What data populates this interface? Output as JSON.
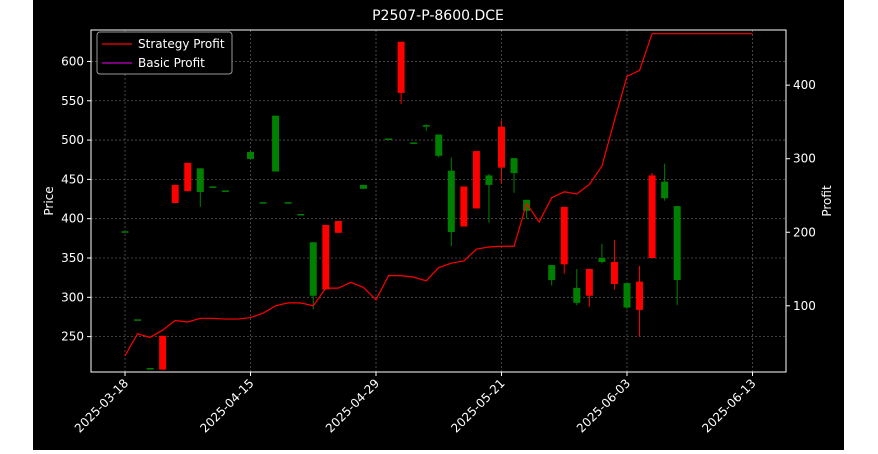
{
  "chart_data": {
    "type": "candlestick",
    "title": "P2507-P-8600.DCE",
    "xlabel": "",
    "ylabel": "Price",
    "ylabel_right": "Profit",
    "ylim": [
      205,
      640
    ],
    "ylim_right": [
      10,
      475
    ],
    "y_ticks": [
      250,
      300,
      350,
      400,
      450,
      500,
      550,
      600
    ],
    "y_ticks_right": [
      100,
      200,
      300,
      400
    ],
    "x_tick_labels": [
      "2025-03-18",
      "2025-04-15",
      "2025-04-29",
      "2025-05-21",
      "2025-06-03",
      "2025-06-13"
    ],
    "x_tick_index": [
      0,
      10,
      20,
      30,
      40,
      50
    ],
    "grid": true,
    "legend": {
      "position": "top-left",
      "entries": [
        {
          "name": "Strategy Profit",
          "color": "#ff0000"
        },
        {
          "name": "Basic Profit",
          "color": "#bf00bf"
        }
      ]
    },
    "colors": {
      "up": "#008000",
      "down": "#ff0000",
      "background": "#000000",
      "grid": "#555555"
    },
    "candles": [
      {
        "o": 384,
        "h": 384,
        "l": 384,
        "c": 384
      },
      {
        "o": 272,
        "h": 272,
        "l": 272,
        "c": 272
      },
      {
        "o": 210,
        "h": 210,
        "l": 210,
        "c": 210
      },
      {
        "o": 251,
        "h": 251,
        "l": 208,
        "c": 208
      },
      {
        "o": 443,
        "h": 443,
        "l": 420,
        "c": 420
      },
      {
        "o": 471,
        "h": 471,
        "l": 435,
        "c": 435
      },
      {
        "o": 434,
        "h": 464,
        "l": 415,
        "c": 464
      },
      {
        "o": 441,
        "h": 441,
        "l": 441,
        "c": 441
      },
      {
        "o": 436,
        "h": 436,
        "l": 436,
        "c": 436
      },
      {
        "o": null,
        "h": null,
        "l": null,
        "c": null
      },
      {
        "o": 476,
        "h": 485,
        "l": 476,
        "c": 485
      },
      {
        "o": 421,
        "h": 421,
        "l": 421,
        "c": 421
      },
      {
        "o": 460,
        "h": 531,
        "l": 460,
        "c": 531
      },
      {
        "o": 421,
        "h": 421,
        "l": 421,
        "c": 421
      },
      {
        "o": 406,
        "h": 406,
        "l": 406,
        "c": 406
      },
      {
        "o": 302,
        "h": 370,
        "l": 285,
        "c": 370
      },
      {
        "o": 392,
        "h": 392,
        "l": 310,
        "c": 310
      },
      {
        "o": 397,
        "h": 397,
        "l": 382,
        "c": 382
      },
      {
        "o": null,
        "h": null,
        "l": null,
        "c": null
      },
      {
        "o": 438,
        "h": 443,
        "l": 438,
        "c": 443
      },
      {
        "o": null,
        "h": null,
        "l": null,
        "c": null
      },
      {
        "o": 502,
        "h": 502,
        "l": 502,
        "c": 502
      },
      {
        "o": 625,
        "h": 625,
        "l": 546,
        "c": 560
      },
      {
        "o": 497,
        "h": 497,
        "l": 497,
        "c": 497
      },
      {
        "o": 517,
        "h": 520,
        "l": 512,
        "c": 519
      },
      {
        "o": 480,
        "h": 507,
        "l": 478,
        "c": 507
      },
      {
        "o": 383,
        "h": 478,
        "l": 365,
        "c": 461
      },
      {
        "o": 441,
        "h": 441,
        "l": 390,
        "c": 390
      },
      {
        "o": 486,
        "h": 486,
        "l": 413,
        "c": 413
      },
      {
        "o": 443,
        "h": 457,
        "l": 395,
        "c": 455
      },
      {
        "o": 517,
        "h": 525,
        "l": 445,
        "c": 465
      },
      {
        "o": 458,
        "h": 477,
        "l": 433,
        "c": 477
      },
      {
        "o": 410,
        "h": 424,
        "l": 400,
        "c": 424
      },
      {
        "o": null,
        "h": null,
        "l": null,
        "c": null
      },
      {
        "o": 322,
        "h": 341,
        "l": 315,
        "c": 341
      },
      {
        "o": 415,
        "h": 415,
        "l": 330,
        "c": 342
      },
      {
        "o": 293,
        "h": 336,
        "l": 290,
        "c": 312
      },
      {
        "o": 336,
        "h": 336,
        "l": 288,
        "c": 302
      },
      {
        "o": 345,
        "h": 368,
        "l": 343,
        "c": 350
      },
      {
        "o": 345,
        "h": 373,
        "l": 310,
        "c": 317
      },
      {
        "o": 287,
        "h": 318,
        "l": 285,
        "c": 318
      },
      {
        "o": 320,
        "h": 340,
        "l": 250,
        "c": 284
      },
      {
        "o": 455,
        "h": 458,
        "l": 350,
        "c": 350
      },
      {
        "o": 426,
        "h": 470,
        "l": 423,
        "c": 447
      },
      {
        "o": 322,
        "h": 416,
        "l": 290,
        "c": 416
      }
    ],
    "series": [
      {
        "name": "Strategy Profit",
        "color": "#ff0000",
        "x": [
          0,
          1,
          2,
          3,
          4,
          5,
          6,
          7,
          8,
          9,
          10,
          11,
          12,
          13,
          14,
          15,
          16,
          17,
          18,
          19,
          20,
          21,
          22,
          23,
          24,
          25,
          26,
          27,
          28,
          29,
          30,
          31,
          32,
          33,
          34,
          35,
          36,
          37,
          38,
          39,
          40,
          41,
          42,
          43,
          44,
          45,
          46,
          47,
          48,
          49,
          50
        ],
        "values": [
          32,
          62,
          57,
          67,
          80,
          78,
          83,
          83,
          82,
          82,
          84,
          90,
          100,
          104,
          104,
          100,
          124,
          124,
          132,
          125,
          108,
          141,
          141,
          139,
          134,
          152,
          158,
          161,
          177,
          180,
          181,
          181,
          239,
          214,
          247,
          255,
          252,
          265,
          290,
          352,
          412,
          420,
          470,
          470,
          470,
          470,
          470,
          470,
          470,
          470,
          470
        ]
      }
    ]
  }
}
